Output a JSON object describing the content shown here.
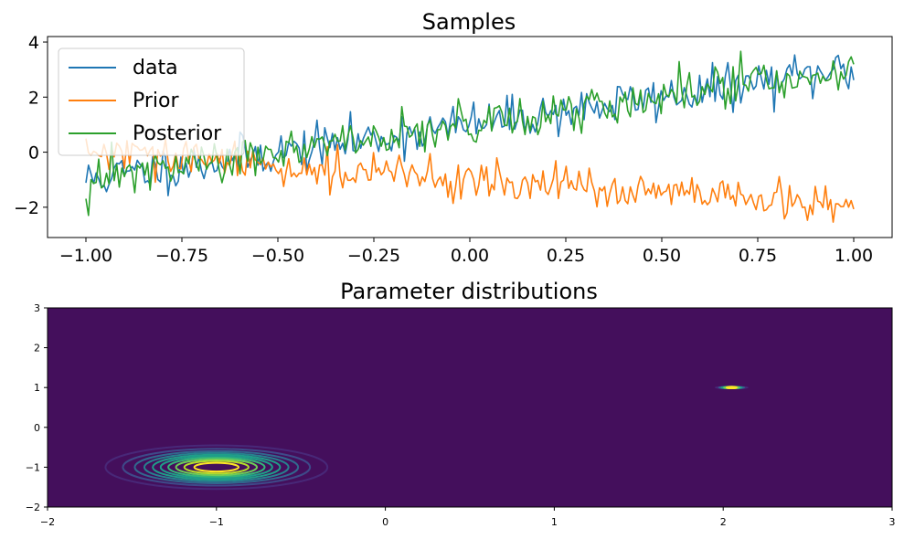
{
  "chart_data": [
    {
      "type": "line",
      "title": "Samples",
      "xlabel": "",
      "ylabel": "",
      "xlim": [
        -1.1,
        1.1
      ],
      "ylim": [
        -3.1,
        4.2
      ],
      "xticks": [
        -1.0,
        -0.75,
        -0.5,
        -0.25,
        0.0,
        0.25,
        0.5,
        0.75,
        1.0
      ],
      "xtick_labels": [
        "−1.00",
        "−0.75",
        "−0.50",
        "−0.25",
        "0.00",
        "0.25",
        "0.50",
        "0.75",
        "1.00"
      ],
      "yticks": [
        -2,
        0,
        2,
        4
      ],
      "ytick_labels": [
        "−2",
        "0",
        "2",
        "4"
      ],
      "legend_position": "top-left",
      "n_points": 300,
      "series": [
        {
          "name": "data",
          "color": "#1f77b4",
          "trend": {
            "slope": 2.0,
            "intercept": 1.0
          },
          "noise_sd": 0.4,
          "seed": 11
        },
        {
          "name": "Prior",
          "color": "#ff7f0e",
          "trend": {
            "slope": -1.0,
            "intercept": -1.0
          },
          "noise_sd": 0.35,
          "seed": 29
        },
        {
          "name": "Posterior",
          "color": "#2ca02c",
          "trend": {
            "slope": 2.05,
            "intercept": 1.0
          },
          "noise_sd": 0.4,
          "seed": 47
        }
      ]
    },
    {
      "type": "heatmap",
      "title": "Parameter distributions",
      "xlim": [
        -2,
        3
      ],
      "ylim": [
        -2,
        3
      ],
      "xticks": [
        -2,
        -1,
        0,
        1,
        2,
        3
      ],
      "xtick_labels": [
        "−2",
        "−1",
        "0",
        "1",
        "2",
        "3"
      ],
      "yticks": [
        -2,
        -1,
        0,
        1,
        2,
        3
      ],
      "ytick_labels": [
        "−2",
        "−1",
        "0",
        "1",
        "2",
        "3"
      ],
      "background_color": "#440f5c",
      "distributions": [
        {
          "name": "prior",
          "mean": [
            -1.0,
            -1.0
          ],
          "sd": [
            0.3,
            0.25
          ],
          "n_levels": 10
        },
        {
          "name": "posterior",
          "mean": [
            2.05,
            1.0
          ],
          "sd": [
            0.05,
            0.01
          ],
          "n_levels": 5
        }
      ],
      "colormap": [
        "#482878",
        "#3e4a89",
        "#31688e",
        "#26828e",
        "#1f9e89",
        "#35b779",
        "#6ece58",
        "#b5de2b",
        "#fde725"
      ]
    }
  ]
}
